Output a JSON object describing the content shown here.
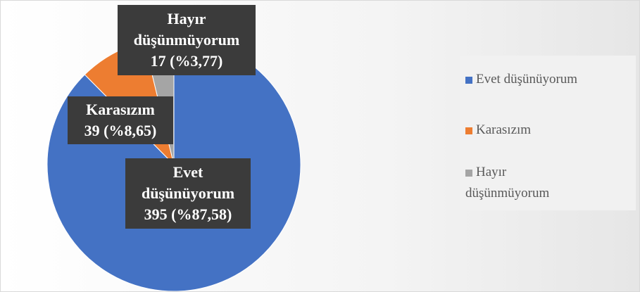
{
  "chart_data": {
    "type": "pie",
    "categories": [
      "Evet düşünüyorum",
      "Karasızım",
      "Hayır düşünmüyorum"
    ],
    "values": [
      395,
      39,
      17
    ],
    "percent_labels": [
      "%87,58",
      "%8,65",
      "%3,77"
    ],
    "colors": [
      "#4472c4",
      "#ed7d31",
      "#a5a5a5"
    ],
    "data_labels": [
      [
        "Evet",
        "düşünüyorum",
        "395 (%87,58)"
      ],
      [
        "Karasızım",
        "39 (%8,65)"
      ],
      [
        "Hayır",
        "düşünmüyorum",
        "17 (%3,77)"
      ]
    ],
    "legend": {
      "position": "right",
      "entries": [
        {
          "lines": [
            "Evet düşünüyorum"
          ],
          "color": "#4472c4"
        },
        {
          "lines": [
            "Karasızım"
          ],
          "color": "#ed7d31"
        },
        {
          "lines": [
            "Hayır",
            "düşünmüyorum"
          ],
          "color": "#a5a5a5"
        }
      ]
    }
  }
}
